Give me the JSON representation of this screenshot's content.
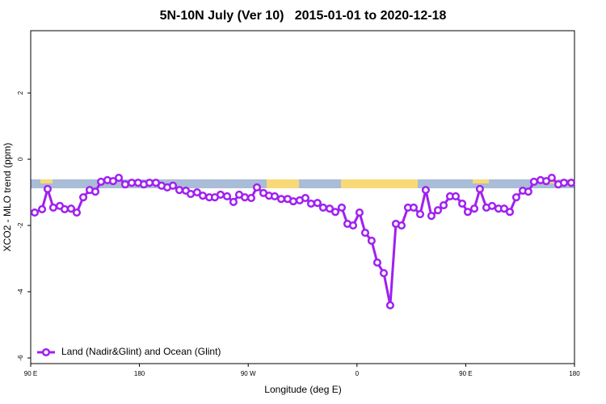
{
  "chart_data": {
    "type": "line",
    "title": "5N-10N July (Ver 10)   2015-01-01 to 2020-12-18",
    "xlabel": "Longitude (deg E)",
    "ylabel": "XCO2 - MLO trend (ppm)",
    "xlim": [
      90,
      540
    ],
    "ylim": [
      -6.17,
      3.88
    ],
    "xticks": [
      {
        "value": 90,
        "label": "90 E"
      },
      180,
      {
        "value": 270,
        "label": "90 W"
      },
      {
        "value": 360,
        "label": "0"
      },
      {
        "value": 450,
        "label": "90 E"
      },
      {
        "value": 540,
        "label": "180"
      }
    ],
    "yticks": [
      -6,
      -4,
      -2,
      0,
      2
    ],
    "legend_position": "bottom-left",
    "series": [
      {
        "name": "Land (Nadir&Glint) and Ocean (Glint)",
        "color": "#a020f0",
        "x": [
          93.3,
          99.4,
          104,
          108.7,
          114.1,
          118.1,
          123.4,
          128.1,
          133.5,
          138.8,
          143.5,
          148.2,
          153.5,
          158.2,
          162.9,
          168.2,
          173.6,
          178.9,
          183.6,
          188.3,
          193.6,
          198.3,
          203,
          207.7,
          213,
          218.4,
          222.4,
          227.7,
          232.4,
          237.8,
          242.4,
          247.1,
          252.5,
          257.8,
          262.5,
          267.2,
          272.5,
          277.2,
          282.6,
          287.2,
          291.9,
          297.3,
          302.6,
          307.3,
          312.6,
          317.3,
          322,
          327.3,
          332,
          337.4,
          342.1,
          347.4,
          352.1,
          356.8,
          362.1,
          366.8,
          372.1,
          376.8,
          382.2,
          387.5,
          392.2,
          396.9,
          402.2,
          406.9,
          412.3,
          416.9,
          421.6,
          427,
          431.7,
          437,
          441.7,
          447.1,
          451.7,
          457.1,
          461.7,
          467.1,
          471.8,
          477.1,
          481.8,
          486.5,
          491.8,
          497.2,
          501.8,
          506.5,
          511.9,
          516.6,
          521.2,
          526.6,
          531.3,
          537.3
        ],
        "values": [
          -1.61,
          -1.51,
          -0.9,
          -1.46,
          -1.41,
          -1.51,
          -1.49,
          -1.61,
          -1.15,
          -0.93,
          -0.98,
          -0.68,
          -0.63,
          -0.66,
          -0.56,
          -0.76,
          -0.71,
          -0.71,
          -0.76,
          -0.71,
          -0.71,
          -0.8,
          -0.85,
          -0.8,
          -0.93,
          -0.95,
          -1.05,
          -1.0,
          -1.1,
          -1.15,
          -1.15,
          -1.07,
          -1.12,
          -1.29,
          -1.07,
          -1.15,
          -1.17,
          -0.85,
          -1.02,
          -1.1,
          -1.12,
          -1.2,
          -1.2,
          -1.27,
          -1.24,
          -1.17,
          -1.34,
          -1.32,
          -1.46,
          -1.49,
          -1.59,
          -1.46,
          -1.95,
          -2.0,
          -1.61,
          -2.22,
          -2.46,
          -3.12,
          -3.44,
          -4.41,
          -1.95,
          -2.0,
          -1.46,
          -1.46,
          -1.66,
          -0.93,
          -1.71,
          -1.54,
          -1.39,
          -1.12,
          -1.12,
          -1.34,
          -1.59,
          -1.49,
          -0.9,
          -1.46,
          -1.41,
          -1.49,
          -1.49,
          -1.59,
          -1.15,
          -0.95,
          -0.98,
          -0.68,
          -0.63,
          -0.66,
          -0.56,
          -0.76,
          -0.71,
          -0.71
        ]
      }
    ]
  }
}
